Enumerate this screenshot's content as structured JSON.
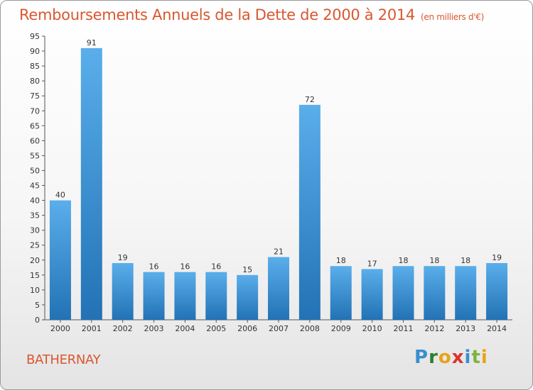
{
  "chart_title": "Remboursements Annuels de la Dette de 2000 à 2014",
  "chart_unit": "(en milliers d'€)",
  "city": "BATHERNAY",
  "logo": {
    "letters": [
      "P",
      "r",
      "o",
      "x",
      "i",
      "t",
      "i"
    ],
    "colors": [
      "#3a8fd0",
      "#2e7d32",
      "#e8a317",
      "#d9342b",
      "#3a8fd0",
      "#7cb342",
      "#e8a317"
    ]
  },
  "colors": {
    "bar_top": "#5aaeea",
    "bar_bottom": "#2272b5",
    "title": "#d9572f"
  },
  "chart_data": {
    "type": "bar",
    "title": "Remboursements Annuels de la Dette de 2000 à 2014",
    "subtitle": "(en milliers d'€)",
    "categories": [
      "2000",
      "2001",
      "2002",
      "2003",
      "2004",
      "2005",
      "2006",
      "2007",
      "2008",
      "2009",
      "2010",
      "2011",
      "2012",
      "2013",
      "2014"
    ],
    "values": [
      40,
      91,
      19,
      16,
      16,
      16,
      15,
      21,
      72,
      18,
      17,
      18,
      18,
      18,
      19
    ],
    "ylim": [
      0,
      95
    ],
    "yticks": [
      0,
      5,
      10,
      15,
      20,
      25,
      30,
      35,
      40,
      45,
      50,
      55,
      60,
      65,
      70,
      75,
      80,
      85,
      90,
      95
    ],
    "grid": false,
    "legend": "none"
  }
}
